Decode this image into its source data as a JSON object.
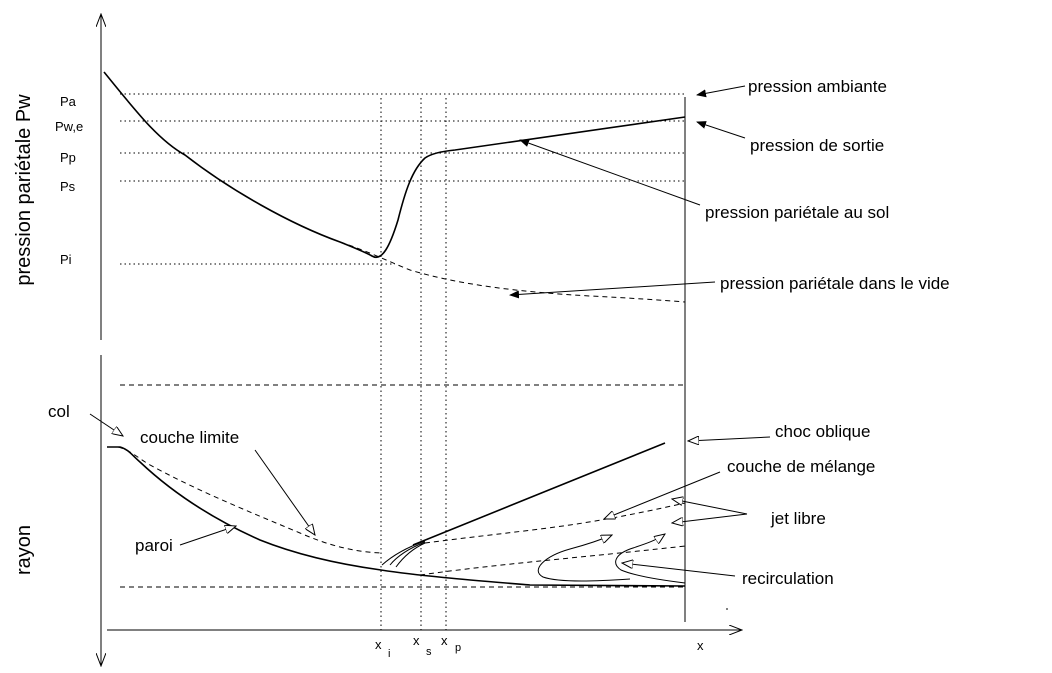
{
  "y_axis_top": "pression pariétale Pw",
  "y_axis_bottom": "rayon",
  "pressure_ticks": {
    "pa": "Pa",
    "pwe": "Pw,e",
    "pp": "Pp",
    "ps": "Ps",
    "pi": "Pi"
  },
  "x_ticks": {
    "xi_base": "x",
    "xi_sub": "i",
    "xs_base": "x",
    "xs_sub": "s",
    "xp_base": "x",
    "xp_sub": "p",
    "x": "x"
  },
  "top_labels": {
    "ambient": "pression ambiante",
    "exit": "pression de sortie",
    "ground_wall": "pression pariétale au sol",
    "vacuum_wall": "pression pariétale dans le vide"
  },
  "bottom_labels": {
    "col": "col",
    "boundary_layer": "couche limite",
    "wall": "paroi",
    "oblique_shock": "choc oblique",
    "mixing_layer": "couche de mélange",
    "free_jet": "jet libre",
    "recirculation": "recirculation"
  }
}
